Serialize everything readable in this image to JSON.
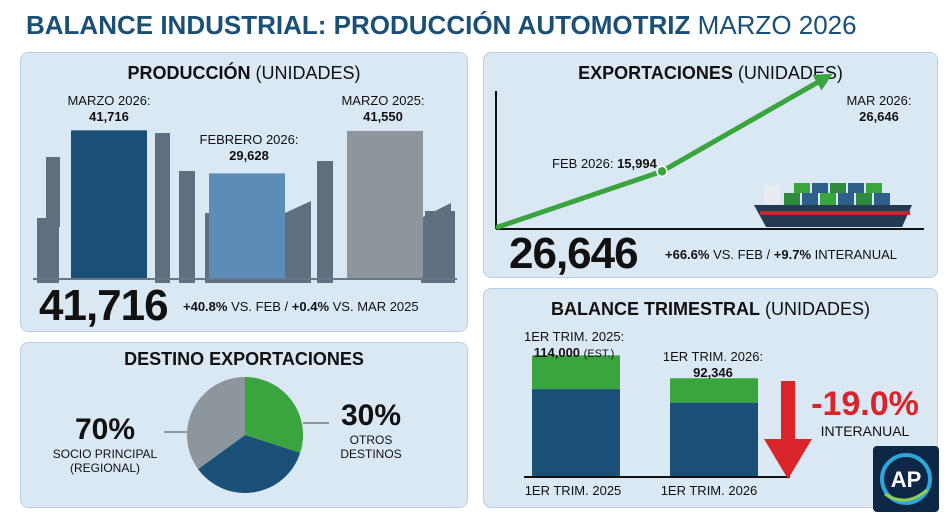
{
  "header": {
    "title_bold": "BALANCE INDUSTRIAL: PRODUCCIÓN AUTOMOTRIZ",
    "title_light": "MARZO 2026"
  },
  "produccion": {
    "title": "PRODUCCIÓN",
    "unit": "(UNIDADES)",
    "bars": [
      {
        "label": "MARZO 2026:",
        "value_text": "41,716",
        "color": "#1a4f78"
      },
      {
        "label": "FEBRERO 2026:",
        "value_text": "29,628",
        "color": "#5b8db8"
      },
      {
        "label": "MARZO 2025:",
        "value_text": "41,550",
        "color": "#8e969d"
      }
    ],
    "big_number": "41,716",
    "change_a": "+40.8%",
    "change_a_suffix": "VS. FEB /",
    "change_b": "+0.4%",
    "change_b_suffix": "VS. MAR 2025"
  },
  "exportaciones": {
    "title": "EXPORTACIONES",
    "unit": "(UNIDADES)",
    "point_feb_label": "FEB 2026:",
    "point_feb_value": "15,994",
    "point_mar_label": "MAR 2026:",
    "point_mar_value": "26,646",
    "big_number": "26,646",
    "change_a": "+66.6%",
    "change_a_suffix": "VS. FEB /",
    "change_b": "+9.7%",
    "change_b_suffix": "INTERANUAL",
    "line_color": "#3aa53f"
  },
  "destino": {
    "title": "DESTINO EXPORTACIONES",
    "left_pct": "70%",
    "left_line1": "SOCIO PRINCIPAL",
    "left_line2": "(REGIONAL)",
    "right_pct": "30%",
    "right_line1": "OTROS",
    "right_line2": "DESTINOS"
  },
  "trimestral": {
    "title": "BALANCE TRIMESTRAL",
    "unit": "(UNIDADES)",
    "bar1_label": "1ER TRIM. 2025:",
    "bar1_value": "114,000",
    "bar1_est": "(EST.)",
    "bar2_label": "1ER TRIM. 2026:",
    "bar2_value": "92,346",
    "change": "-19.0%",
    "change_label": "INTERANUAL",
    "x_labels": [
      "1ER TRIM. 2025",
      "1ER TRIM. 2026"
    ],
    "change_color": "#d9252a"
  },
  "logo_text": "AP",
  "chart_data": [
    {
      "type": "bar",
      "title": "PRODUCCIÓN (UNIDADES)",
      "categories": [
        "MARZO 2026",
        "FEBRERO 2026",
        "MARZO 2025"
      ],
      "values": [
        41716,
        29628,
        41550
      ],
      "ylim": [
        0,
        45000
      ]
    },
    {
      "type": "line",
      "title": "EXPORTACIONES (UNIDADES)",
      "x": [
        "FEB 2026",
        "MAR 2026"
      ],
      "values": [
        15994,
        26646
      ]
    },
    {
      "type": "pie",
      "title": "DESTINO EXPORTACIONES",
      "labels": [
        "SOCIO PRINCIPAL (REGIONAL)",
        "OTROS DESTINOS"
      ],
      "values": [
        70,
        30
      ],
      "colors": [
        "#1a4f78",
        "#3aa53f"
      ]
    },
    {
      "type": "bar",
      "title": "BALANCE TRIMESTRAL (UNIDADES)",
      "categories": [
        "1ER TRIM. 2025",
        "1ER TRIM. 2026"
      ],
      "values": [
        114000,
        92346
      ],
      "ylim": [
        0,
        120000
      ]
    }
  ]
}
